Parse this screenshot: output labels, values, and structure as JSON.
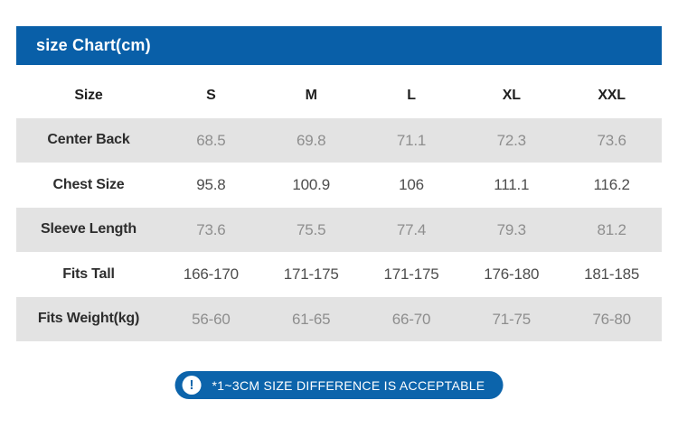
{
  "chart_data": {
    "type": "table",
    "title": "size Chart(cm)",
    "columns": [
      "Size",
      "S",
      "M",
      "L",
      "XL",
      "XXL"
    ],
    "rows": [
      [
        "Center Back",
        "68.5",
        "69.8",
        "71.1",
        "72.3",
        "73.6"
      ],
      [
        "Chest Size",
        "95.8",
        "100.9",
        "106",
        "111.1",
        "116.2"
      ],
      [
        "Sleeve Length",
        "73.6",
        "75.5",
        "77.4",
        "79.3",
        "81.2"
      ],
      [
        "Fits Tall",
        "166-170",
        "171-175",
        "171-175",
        "176-180",
        "181-185"
      ],
      [
        "Fits Weight(kg)",
        "56-60",
        "61-65",
        "66-70",
        "71-75",
        "76-80"
      ]
    ],
    "footnote": "*1~3CM SIZE DIFFERENCE IS ACCEPTABLE",
    "layout_hints": {
      "shaded_row_indexes": [
        0,
        2,
        4
      ],
      "header_row": "top",
      "grid": "off",
      "unit": "cm"
    }
  },
  "icons": {
    "exclamation": "!"
  },
  "colors": {
    "header_blue": "#095fa8",
    "badge_blue": "#0c64ab",
    "row_shade": "#e3e3e3",
    "label_text": "#2d2d2d",
    "value_gray": "#8e8e8e",
    "value_dark": "#4d4d4d"
  }
}
